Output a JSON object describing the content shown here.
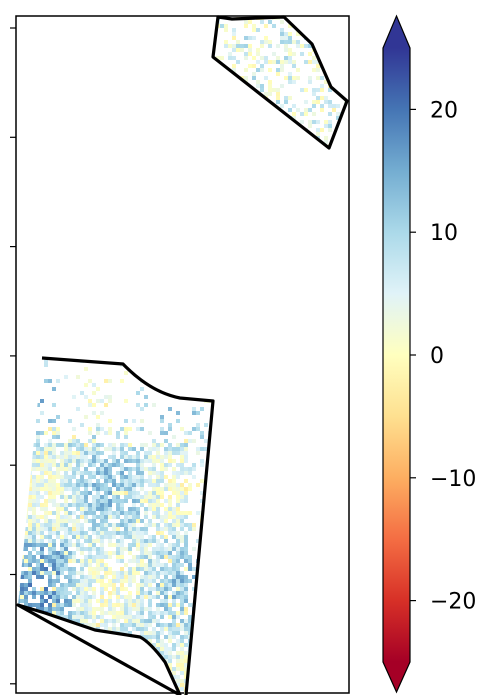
{
  "colorbar": {
    "min": -25,
    "max": 25,
    "extend": "both",
    "colormap": "RdYlBu",
    "stops": [
      "#a50026",
      "#d73027",
      "#f46d43",
      "#fdae61",
      "#fee090",
      "#ffffbf",
      "#e0f3f8",
      "#abd9e9",
      "#74add1",
      "#4575b4",
      "#313695"
    ],
    "ticks": [
      {
        "value": 20,
        "label": "20"
      },
      {
        "value": 10,
        "label": "10"
      },
      {
        "value": 0,
        "label": "0"
      },
      {
        "value": -10,
        "label": "−10"
      },
      {
        "value": -20,
        "label": "−20"
      }
    ]
  },
  "map": {
    "left_axis_tick_count": 7,
    "regions": [
      "upper-right-region",
      "lower-left-region"
    ]
  }
}
